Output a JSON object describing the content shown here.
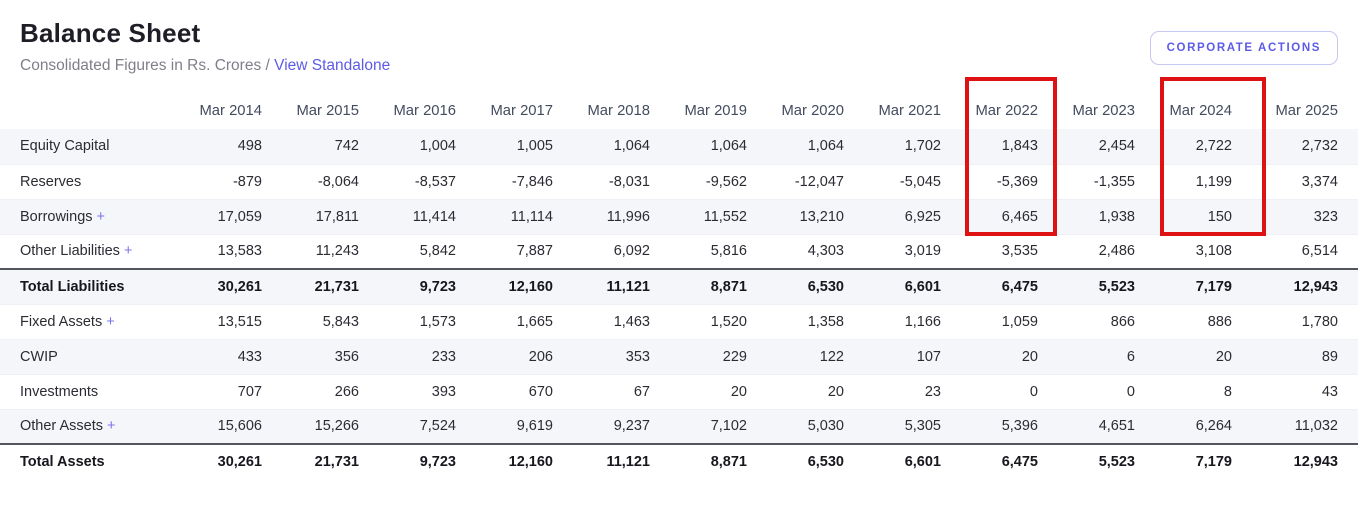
{
  "page": {
    "title": "Balance Sheet",
    "subtitle_prefix": "Consolidated Figures in Rs. Crores /",
    "standalone_link": "View Standalone",
    "corporate_actions_label": "CORPORATE ACTIONS"
  },
  "colors": {
    "accent": "#5d5be6",
    "highlight_red": "#de1212",
    "stripe": "#f5f6fa"
  },
  "highlights": [
    "Mar 2022",
    "Mar 2024"
  ],
  "table": {
    "columns": [
      "Mar 2014",
      "Mar 2015",
      "Mar 2016",
      "Mar 2017",
      "Mar 2018",
      "Mar 2019",
      "Mar 2020",
      "Mar 2021",
      "Mar 2022",
      "Mar 2023",
      "Mar 2024",
      "Mar 2025"
    ],
    "rows": [
      {
        "label": "Equity Capital",
        "expandable": false,
        "total": false,
        "values": [
          "498",
          "742",
          "1,004",
          "1,005",
          "1,064",
          "1,064",
          "1,064",
          "1,702",
          "1,843",
          "2,454",
          "2,722",
          "2,732"
        ]
      },
      {
        "label": "Reserves",
        "expandable": false,
        "total": false,
        "values": [
          "-879",
          "-8,064",
          "-8,537",
          "-7,846",
          "-8,031",
          "-9,562",
          "-12,047",
          "-5,045",
          "-5,369",
          "-1,355",
          "1,199",
          "3,374"
        ]
      },
      {
        "label": "Borrowings",
        "expandable": true,
        "total": false,
        "values": [
          "17,059",
          "17,811",
          "11,414",
          "11,114",
          "11,996",
          "11,552",
          "13,210",
          "6,925",
          "6,465",
          "1,938",
          "150",
          "323"
        ]
      },
      {
        "label": "Other Liabilities",
        "expandable": true,
        "total": false,
        "values": [
          "13,583",
          "11,243",
          "5,842",
          "7,887",
          "6,092",
          "5,816",
          "4,303",
          "3,019",
          "3,535",
          "2,486",
          "3,108",
          "6,514"
        ]
      },
      {
        "label": "Total Liabilities",
        "expandable": false,
        "total": true,
        "values": [
          "30,261",
          "21,731",
          "9,723",
          "12,160",
          "11,121",
          "8,871",
          "6,530",
          "6,601",
          "6,475",
          "5,523",
          "7,179",
          "12,943"
        ]
      },
      {
        "label": "Fixed Assets",
        "expandable": true,
        "total": false,
        "values": [
          "13,515",
          "5,843",
          "1,573",
          "1,665",
          "1,463",
          "1,520",
          "1,358",
          "1,166",
          "1,059",
          "866",
          "886",
          "1,780"
        ]
      },
      {
        "label": "CWIP",
        "expandable": false,
        "total": false,
        "values": [
          "433",
          "356",
          "233",
          "206",
          "353",
          "229",
          "122",
          "107",
          "20",
          "6",
          "20",
          "89"
        ]
      },
      {
        "label": "Investments",
        "expandable": false,
        "total": false,
        "values": [
          "707",
          "266",
          "393",
          "670",
          "67",
          "20",
          "20",
          "23",
          "0",
          "0",
          "8",
          "43"
        ]
      },
      {
        "label": "Other Assets",
        "expandable": true,
        "total": false,
        "values": [
          "15,606",
          "15,266",
          "7,524",
          "9,619",
          "9,237",
          "7,102",
          "5,030",
          "5,305",
          "5,396",
          "4,651",
          "6,264",
          "11,032"
        ]
      },
      {
        "label": "Total Assets",
        "expandable": false,
        "total": true,
        "values": [
          "30,261",
          "21,731",
          "9,723",
          "12,160",
          "11,121",
          "8,871",
          "6,530",
          "6,601",
          "6,475",
          "5,523",
          "7,179",
          "12,943"
        ]
      }
    ],
    "expand_symbol": "+"
  }
}
